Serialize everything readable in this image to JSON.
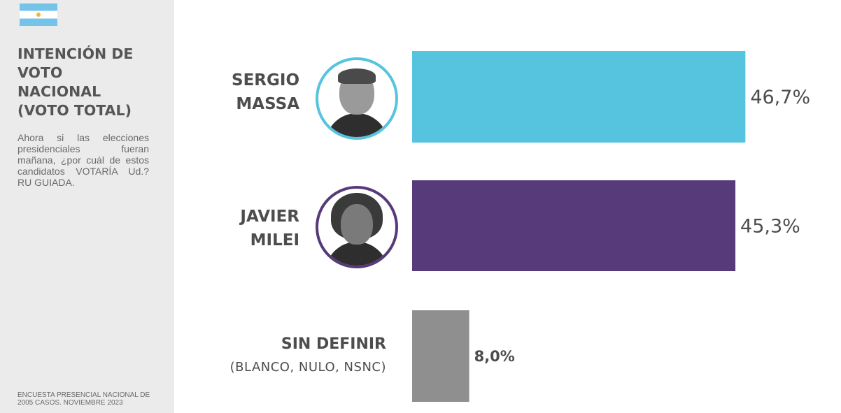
{
  "sidebar": {
    "title_lines": [
      "INTENCIÓN DE",
      "VOTO",
      "NACIONAL",
      "(VOTO TOTAL)"
    ],
    "question": "Ahora si las elecciones presidenciales fueran mañana, ¿por cuál de estos candidatos VOTARÍA Ud.? RU GUIADA.",
    "footnote": "ENCUESTA PRESENCIAL NACIONAL DE 2005 CASOS. NOVIEMBRE 2023",
    "flag_icon": "argentina-flag-icon"
  },
  "candidates": {
    "massa": {
      "line1": "SERGIO",
      "line2": "MASSA",
      "photo_icon": "massa-photo-icon"
    },
    "milei": {
      "line1": "JAVIER",
      "line2": "MILEI",
      "photo_icon": "milei-photo-icon"
    },
    "sin": {
      "line1": "SIN DEFINIR",
      "line2": "(BLANCO, NULO, NSNC)"
    }
  },
  "chart_data": {
    "type": "bar",
    "orientation": "horizontal",
    "categories": [
      "SERGIO MASSA",
      "JAVIER MILEI",
      "SIN DEFINIR (BLANCO, NULO, NSNC)"
    ],
    "values": [
      46.7,
      45.3,
      8.0
    ],
    "value_labels": [
      "46,7%",
      "45,3%",
      "8,0%"
    ],
    "colors": [
      "#56c4df",
      "#563a79",
      "#8f8f8f"
    ],
    "xlim": [
      0,
      100
    ],
    "grid": false,
    "legend": "none"
  }
}
